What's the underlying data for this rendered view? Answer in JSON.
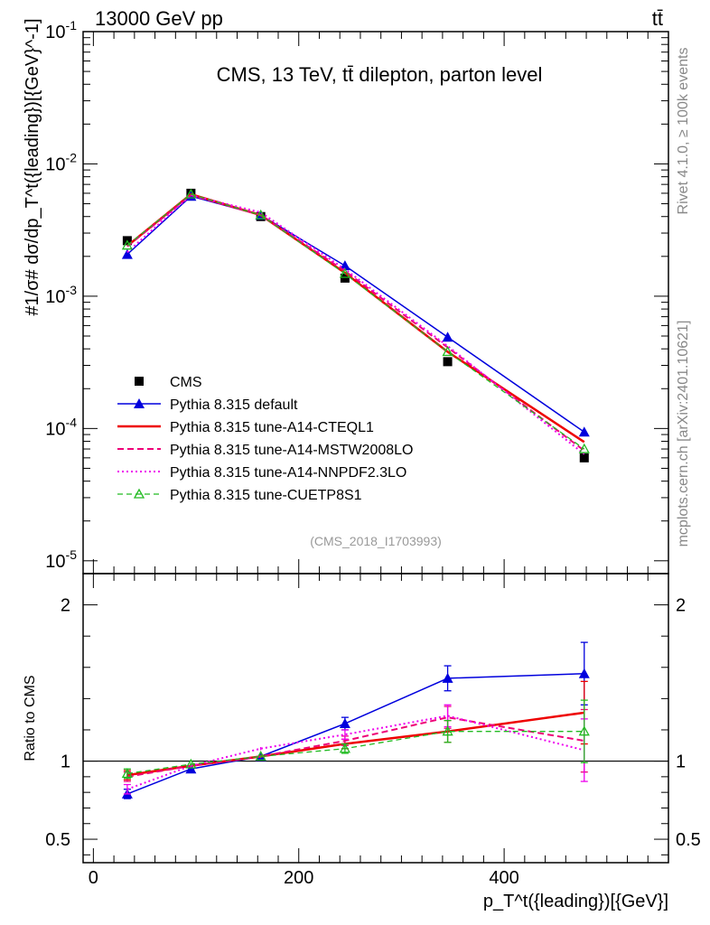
{
  "header": {
    "energy_label": "13000 GeV pp",
    "process_label": "tt̄",
    "side_version": "Rivet 4.1.0, ≥ 100k events",
    "side_source": "mcplots.cern.ch [arXiv:2401.10621]"
  },
  "colors": {
    "cms": "#000000",
    "default": "#0000dd",
    "cteql1": "#ee0000",
    "mstw": "#ee0077",
    "nnpdf": "#ee00ee",
    "cuetp8s1": "#22bb22"
  },
  "chart_data": [
    {
      "type": "line",
      "title": "CMS, 13 TeV, tt̄ dilepton, parton level",
      "analysis_id": "(CMS_2018_I1703993)",
      "xlabel": "p_T^t({leading})[{GeV}]",
      "ylabel": "#1/σ# dσ/dp_T^t({leading})[{GeV}^-1]",
      "yscale": "log",
      "xlim": [
        -10,
        560
      ],
      "ylim": [
        8e-06,
        0.1
      ],
      "ytick_labels": [
        "10^-5",
        "10^-4",
        "10^-3",
        "10^-2",
        "10^-1"
      ],
      "x": [
        33,
        95,
        163,
        245,
        345,
        478
      ],
      "series": [
        {
          "name": "CMS",
          "key": "cms",
          "marker": "square",
          "values": [
            0.00263,
            0.006,
            0.004,
            0.00137,
            0.00032,
            6e-05
          ]
        },
        {
          "name": "Pythia 8.315 default",
          "key": "default",
          "marker": "triangle",
          "values": [
            0.00207,
            0.0057,
            0.0041,
            0.0017,
            0.00049,
            9.4e-05
          ]
        },
        {
          "name": "Pythia 8.315 tune-A14-CTEQL1",
          "key": "cteql1",
          "marker": "none",
          "values": [
            0.0024,
            0.0059,
            0.0041,
            0.0015,
            0.00038,
            7.9e-05
          ]
        },
        {
          "name": "Pythia 8.315 tune-A14-MSTW2008LO",
          "key": "mstw",
          "marker": "none",
          "values": [
            0.00238,
            0.0058,
            0.0041,
            0.00155,
            0.00041,
            6.8e-05
          ]
        },
        {
          "name": "Pythia 8.315 tune-A14-NNPDF2.3LO",
          "key": "nnpdf",
          "marker": "none",
          "values": [
            0.00215,
            0.0058,
            0.0043,
            0.0016,
            0.00042,
            6.4e-05
          ]
        },
        {
          "name": "Pythia 8.315 tune-CUETP8S1",
          "key": "cuetp8s1",
          "marker": "open-triangle",
          "values": [
            0.00242,
            0.0059,
            0.0041,
            0.00148,
            0.00038,
            7e-05
          ]
        }
      ]
    },
    {
      "type": "line",
      "title": "",
      "xlabel": "p_T^t({leading})[{GeV}]",
      "ylabel": "Ratio to CMS",
      "xlim": [
        -10,
        560
      ],
      "ylim": [
        0.35,
        2.2
      ],
      "x_ticks": [
        0,
        200,
        400
      ],
      "x_tick_labels": [
        "0",
        "200",
        "400"
      ],
      "y_ticks": [
        0.5,
        1,
        2
      ],
      "y_tick_labels": [
        "0.5",
        "1",
        "2"
      ],
      "x": [
        33,
        95,
        163,
        245,
        345,
        478
      ],
      "series": [
        {
          "name": "Pythia 8.315 default",
          "key": "default",
          "marker": "triangle",
          "values": [
            0.79,
            0.95,
            1.03,
            1.24,
            1.53,
            1.56
          ],
          "err": [
            0.03,
            0.01,
            0.01,
            0.04,
            0.08,
            0.2
          ]
        },
        {
          "name": "Pythia 8.315 tune-A14-CTEQL1",
          "key": "cteql1",
          "marker": "none",
          "values": [
            0.91,
            0.97,
            1.03,
            1.11,
            1.19,
            1.31
          ],
          "err": [
            0.03,
            0.01,
            0.01,
            0.03,
            0.07,
            0.2
          ]
        },
        {
          "name": "Pythia 8.315 tune-A14-MSTW2008LO",
          "key": "mstw",
          "marker": "none",
          "values": [
            0.9,
            0.97,
            1.03,
            1.13,
            1.28,
            1.13
          ],
          "err": [
            0.03,
            0.01,
            0.01,
            0.03,
            0.07,
            0.2
          ]
        },
        {
          "name": "Pythia 8.315 tune-A14-NNPDF2.3LO",
          "key": "nnpdf",
          "marker": "none",
          "values": [
            0.82,
            0.97,
            1.08,
            1.17,
            1.29,
            1.07
          ],
          "err": [
            0.03,
            0.01,
            0.01,
            0.03,
            0.07,
            0.2
          ]
        },
        {
          "name": "Pythia 8.315 tune-CUETP8S1",
          "key": "cuetp8s1",
          "marker": "open-triangle",
          "values": [
            0.92,
            0.98,
            1.03,
            1.08,
            1.19,
            1.19
          ],
          "err": [
            0.03,
            0.01,
            0.01,
            0.03,
            0.07,
            0.2
          ]
        }
      ]
    }
  ]
}
